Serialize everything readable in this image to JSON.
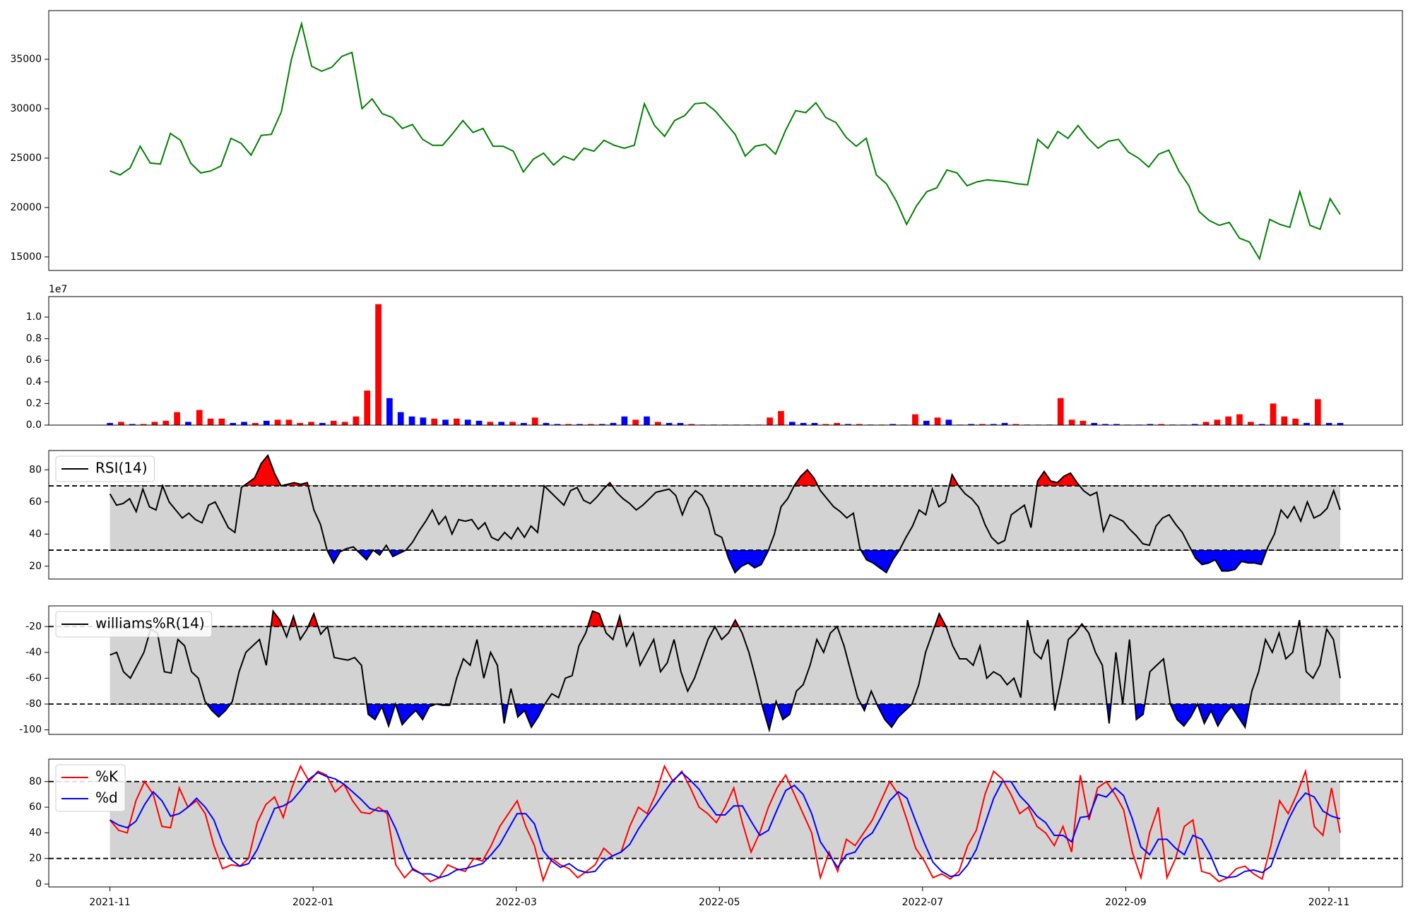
{
  "chart_data": [
    {
      "type": "line",
      "color": "green",
      "values": [
        23700,
        23300,
        24000,
        26200,
        24500,
        24400,
        27500,
        26800,
        24500,
        23500,
        23700,
        24200,
        27000,
        26500,
        25300,
        27300,
        27400,
        29700,
        35000,
        38600,
        34300,
        33800,
        34200,
        35300,
        35700,
        30000,
        31000,
        29500,
        29100,
        28000,
        28400,
        26900,
        26300,
        26300,
        27500,
        28800,
        27600,
        28000,
        26200,
        26200,
        25700,
        23600,
        24900,
        25500,
        24300,
        25200,
        24800,
        26000,
        25700,
        26800,
        26300,
        26000,
        26300,
        30500,
        28300,
        27200,
        28800,
        29300,
        30500,
        30600,
        29800,
        28600,
        27400,
        25200,
        26200,
        26400,
        25400,
        27800,
        29800,
        29600,
        30600,
        29100,
        28600,
        27100,
        26200,
        27000,
        23300,
        22400,
        20600,
        18300,
        20200,
        21600,
        22000,
        23800,
        23500,
        22200,
        22600,
        22800,
        22700,
        22600,
        22400,
        22300,
        26900,
        26000,
        27700,
        27000,
        28300,
        27000,
        26000,
        26700,
        26900,
        25600,
        25000,
        24100,
        25400,
        25800,
        23700,
        22200,
        19600,
        18700,
        18200,
        18500,
        16900,
        16500,
        14800,
        18800,
        18300,
        18000,
        21600,
        18200,
        17800,
        20900,
        19300
      ],
      "ylim": [
        13630,
        39930
      ],
      "yticks": [
        15000,
        20000,
        25000,
        30000,
        35000
      ]
    },
    {
      "type": "bar",
      "offset_label": "1e7",
      "values": [
        0.02,
        0.03,
        0.01,
        0.01,
        0.03,
        0.04,
        0.12,
        0.03,
        0.14,
        0.06,
        0.06,
        0.02,
        0.03,
        0.02,
        0.04,
        0.05,
        0.05,
        0.02,
        0.03,
        0.02,
        0.04,
        0.03,
        0.08,
        0.32,
        1.12,
        0.25,
        0.12,
        0.08,
        0.07,
        0.06,
        0.05,
        0.06,
        0.05,
        0.04,
        0.03,
        0.03,
        0.03,
        0.02,
        0.07,
        0.02,
        0.01,
        0.01,
        0.01,
        0.01,
        0.01,
        0.02,
        0.08,
        0.05,
        0.08,
        0.03,
        0.02,
        0.02,
        0.01,
        0.005,
        0.005,
        0.005,
        0.005,
        0.005,
        0.005,
        0.07,
        0.13,
        0.03,
        0.02,
        0.02,
        0.01,
        0.02,
        0.01,
        0.01,
        0.005,
        0.005,
        0.01,
        0.005,
        0.1,
        0.04,
        0.07,
        0.05,
        0.005,
        0.01,
        0.01,
        0.01,
        0.02,
        0.01,
        0.005,
        0.005,
        0.005,
        0.25,
        0.05,
        0.04,
        0.02,
        0.01,
        0.01,
        0.005,
        0.005,
        0.01,
        0.01,
        0.005,
        0.005,
        0.01,
        0.03,
        0.05,
        0.08,
        0.1,
        0.03,
        0.01,
        0.2,
        0.08,
        0.06,
        0.02,
        0.24,
        0.02,
        0.02
      ],
      "colors": [
        "blue",
        "red",
        "blue",
        "red",
        "red",
        "red",
        "red",
        "blue",
        "red",
        "red",
        "red",
        "blue",
        "blue",
        "red",
        "blue",
        "red",
        "red",
        "red",
        "red",
        "blue",
        "red",
        "red",
        "red",
        "red",
        "red",
        "blue",
        "blue",
        "blue",
        "blue",
        "red",
        "blue",
        "red",
        "blue",
        "blue",
        "red",
        "blue",
        "red",
        "blue",
        "red",
        "blue",
        "blue",
        "red",
        "blue",
        "red",
        "blue",
        "blue",
        "blue",
        "red",
        "blue",
        "red",
        "blue",
        "blue",
        "red",
        "red",
        "blue",
        "red",
        "red",
        "blue",
        "red",
        "red",
        "red",
        "blue",
        "blue",
        "blue",
        "red",
        "red",
        "blue",
        "red",
        "blue",
        "red",
        "blue",
        "red",
        "red",
        "blue",
        "red",
        "blue",
        "red",
        "blue",
        "red",
        "blue",
        "blue",
        "red",
        "blue",
        "red",
        "blue",
        "red",
        "red",
        "red",
        "blue",
        "blue",
        "blue",
        "red",
        "blue",
        "blue",
        "red",
        "blue",
        "red",
        "blue",
        "red",
        "red",
        "red",
        "red",
        "red",
        "blue",
        "red",
        "red",
        "red",
        "blue",
        "red",
        "blue",
        "blue"
      ],
      "ylim": [
        0,
        1.19
      ],
      "yticks": [
        {
          "value": 0,
          "label": "0.0"
        },
        0.2,
        0.4,
        0.6,
        0.8,
        {
          "value": 1,
          "label": "1.0"
        }
      ]
    },
    {
      "type": "line",
      "legend": "upper left",
      "hlines": [
        70,
        30
      ],
      "band_color": "#d3d3d3",
      "above_color": "red",
      "below_color": "blue",
      "series": [
        {
          "name": "RSI(14)",
          "color": "black",
          "values": [
            65,
            58,
            59,
            62,
            54,
            68,
            57,
            55,
            70,
            60,
            55,
            50,
            53,
            49,
            47,
            58,
            60,
            52,
            44,
            41,
            69,
            72,
            75,
            84,
            89,
            78,
            70,
            71,
            72,
            71,
            72,
            55,
            46,
            30,
            22,
            29,
            31,
            32,
            28,
            24,
            30,
            27,
            33,
            26,
            28,
            30,
            35,
            42,
            48,
            55,
            46,
            51,
            40,
            49,
            48,
            49,
            43,
            47,
            38,
            36,
            41,
            37,
            44,
            38,
            45,
            41,
            70,
            66,
            62,
            58,
            67,
            69,
            61,
            59,
            63,
            68,
            72,
            66,
            62,
            59,
            55,
            58,
            62,
            66,
            67,
            68,
            64,
            52,
            62,
            67,
            64,
            56,
            40,
            38,
            25,
            16,
            20,
            22,
            19,
            21,
            29,
            40,
            57,
            62,
            70,
            76,
            80,
            75,
            67,
            62,
            57,
            54,
            50,
            53,
            31,
            24,
            22,
            19,
            16,
            24,
            30,
            38,
            45,
            55,
            52,
            68,
            57,
            60,
            77,
            70,
            65,
            62,
            57,
            46,
            38,
            34,
            36,
            52,
            55,
            58,
            44,
            73,
            79,
            73,
            72,
            76,
            78,
            72,
            67,
            64,
            66,
            42,
            52,
            50,
            48,
            43,
            39,
            34,
            33,
            45,
            50,
            52,
            46,
            41,
            33,
            25,
            21,
            22,
            24,
            17,
            17,
            18,
            23,
            22,
            22,
            21,
            32,
            40,
            55,
            50,
            57,
            48,
            60,
            50,
            52,
            56,
            67,
            55
          ]
        }
      ],
      "ylim": [
        12,
        92
      ],
      "yticks": [
        20,
        40,
        60,
        80
      ]
    },
    {
      "type": "line",
      "legend": "upper left",
      "hlines": [
        -20,
        -80
      ],
      "band_color": "#d3d3d3",
      "above_color": "red",
      "below_color": "blue",
      "series": [
        {
          "name": "williams%R(14)",
          "color": "black",
          "values": [
            -42,
            -40,
            -55,
            -60,
            -50,
            -40,
            -22,
            -25,
            -55,
            -56,
            -30,
            -35,
            -55,
            -60,
            -78,
            -85,
            -90,
            -85,
            -78,
            -55,
            -40,
            -35,
            -30,
            -50,
            -8,
            -15,
            -28,
            -12,
            -30,
            -22,
            -10,
            -26,
            -20,
            -44,
            -45,
            -46,
            -44,
            -50,
            -88,
            -92,
            -82,
            -97,
            -80,
            -96,
            -90,
            -85,
            -92,
            -82,
            -80,
            -81,
            -81,
            -60,
            -45,
            -50,
            -30,
            -60,
            -40,
            -50,
            -95,
            -68,
            -90,
            -85,
            -98,
            -90,
            -80,
            -72,
            -75,
            -60,
            -58,
            -35,
            -25,
            -8,
            -10,
            -25,
            -30,
            -12,
            -35,
            -25,
            -50,
            -40,
            -30,
            -55,
            -48,
            -30,
            -55,
            -70,
            -60,
            -45,
            -30,
            -20,
            -30,
            -25,
            -15,
            -25,
            -40,
            -60,
            -82,
            -100,
            -78,
            -92,
            -88,
            -70,
            -65,
            -50,
            -30,
            -40,
            -25,
            -20,
            -35,
            -55,
            -75,
            -85,
            -70,
            -82,
            -92,
            -98,
            -90,
            -85,
            -80,
            -65,
            -40,
            -25,
            -10,
            -20,
            -35,
            -45,
            -45,
            -50,
            -35,
            -60,
            -55,
            -58,
            -65,
            -60,
            -75,
            -15,
            -40,
            -45,
            -30,
            -85,
            -60,
            -30,
            -25,
            -18,
            -25,
            -40,
            -50,
            -95,
            -40,
            -80,
            -30,
            -92,
            -88,
            -55,
            -50,
            -45,
            -80,
            -92,
            -97,
            -90,
            -80,
            -95,
            -85,
            -97,
            -88,
            -82,
            -90,
            -98,
            -70,
            -55,
            -30,
            -40,
            -25,
            -45,
            -40,
            -15,
            -55,
            -60,
            -50,
            -22,
            -30,
            -60
          ]
        }
      ],
      "ylim": [
        -103.5,
        -4
      ],
      "yticks": [
        -100,
        -80,
        -60,
        -40,
        -20
      ]
    },
    {
      "type": "line",
      "legend": "upper left",
      "hlines": [
        80,
        20
      ],
      "band_color": "#d3d3d3",
      "series": [
        {
          "name": "%K",
          "color": "red",
          "values": [
            50,
            42,
            40,
            65,
            80,
            70,
            45,
            44,
            75,
            60,
            65,
            55,
            30,
            12,
            15,
            14,
            20,
            48,
            62,
            68,
            52,
            75,
            92,
            80,
            88,
            85,
            72,
            78,
            65,
            56,
            55,
            60,
            55,
            15,
            5,
            12,
            8,
            2,
            5,
            15,
            12,
            10,
            20,
            18,
            30,
            45,
            55,
            65,
            45,
            30,
            3,
            20,
            15,
            12,
            5,
            10,
            15,
            28,
            22,
            25,
            45,
            60,
            55,
            70,
            92,
            80,
            88,
            75,
            60,
            55,
            48,
            60,
            75,
            48,
            25,
            40,
            60,
            75,
            85,
            70,
            55,
            40,
            5,
            25,
            10,
            35,
            30,
            40,
            50,
            65,
            80,
            70,
            50,
            28,
            18,
            5,
            8,
            4,
            10,
            30,
            42,
            70,
            88,
            82,
            70,
            55,
            60,
            45,
            40,
            30,
            45,
            25,
            85,
            50,
            75,
            80,
            70,
            58,
            25,
            5,
            40,
            60,
            5,
            20,
            45,
            50,
            10,
            8,
            2,
            5,
            12,
            14,
            8,
            4,
            30,
            65,
            55,
            70,
            88,
            45,
            38,
            75,
            40
          ]
        },
        {
          "name": "%d",
          "color": "blue",
          "values": [
            50,
            46,
            44,
            49,
            62,
            72,
            65,
            53,
            55,
            60,
            67,
            60,
            50,
            32,
            19,
            14,
            16,
            27,
            43,
            59,
            61,
            65,
            73,
            82,
            87,
            84,
            82,
            78,
            72,
            66,
            59,
            57,
            57,
            43,
            25,
            11,
            8,
            8,
            5,
            7,
            11,
            12,
            14,
            16,
            23,
            31,
            43,
            55,
            55,
            47,
            26,
            18,
            13,
            16,
            11,
            9,
            10,
            18,
            22,
            25,
            31,
            43,
            53,
            62,
            72,
            81,
            87,
            81,
            74,
            63,
            54,
            54,
            61,
            61,
            49,
            38,
            42,
            58,
            73,
            77,
            70,
            55,
            33,
            23,
            13,
            23,
            25,
            35,
            40,
            52,
            65,
            72,
            67,
            49,
            32,
            17,
            10,
            6,
            7,
            15,
            27,
            47,
            67,
            80,
            80,
            69,
            62,
            53,
            48,
            38,
            38,
            33,
            52,
            53,
            70,
            68,
            75,
            69,
            51,
            29,
            23,
            35,
            35,
            28,
            23,
            38,
            35,
            23,
            7,
            5,
            6,
            10,
            11,
            9,
            14,
            33,
            50,
            63,
            71,
            68,
            57,
            53,
            51
          ]
        }
      ],
      "ylim": [
        -2.2,
        97.5
      ],
      "yticks": [
        0,
        20,
        40,
        60,
        80
      ],
      "xticks": [
        "2021-11",
        "2022-01",
        "2022-03",
        "2022-05",
        "2022-07",
        "2022-09",
        "2022-11"
      ]
    }
  ]
}
